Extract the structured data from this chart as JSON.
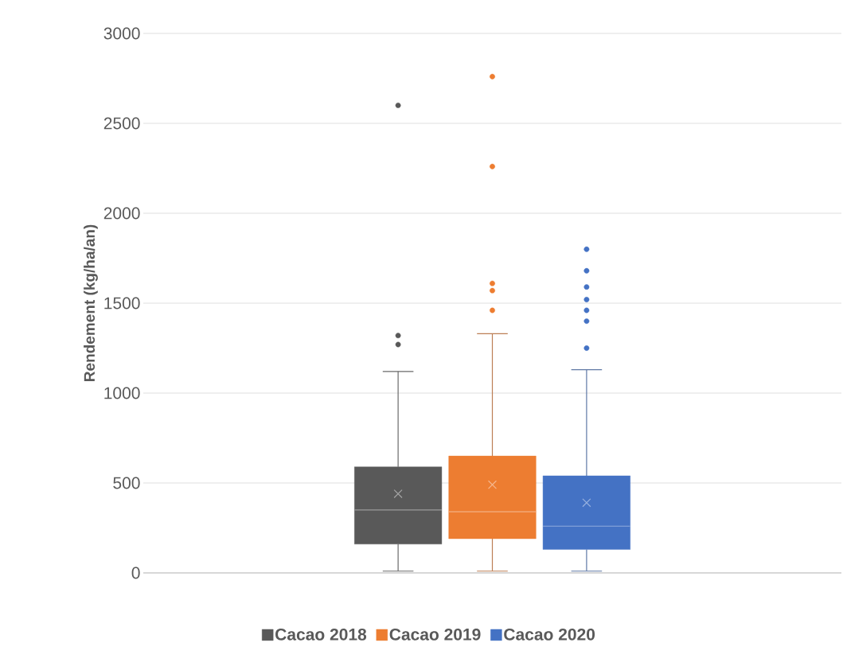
{
  "chart_data": {
    "type": "box",
    "ylabel": "Rendement (kg/ha/an)",
    "categories": [
      null
    ],
    "ylim": [
      0,
      3000
    ],
    "yticks": [
      0,
      500,
      1000,
      1500,
      2000,
      2500,
      3000
    ],
    "grid": "y",
    "legend": "bottom",
    "tick_labels": "y",
    "series": [
      {
        "name": "Cacao 2018",
        "color": "#595959",
        "boxes": [
          {
            "low": 10,
            "q1": 160,
            "median": 350,
            "q3": 590,
            "high": 1120,
            "mean": 440,
            "outliers": [
              1270,
              1320,
              2600
            ]
          }
        ]
      },
      {
        "name": "Cacao 2019",
        "color": "#ed7d31",
        "boxes": [
          {
            "low": 10,
            "q1": 190,
            "median": 340,
            "q3": 650,
            "high": 1330,
            "mean": 490,
            "outliers": [
              1460,
              1570,
              1610,
              2260,
              2760
            ]
          }
        ]
      },
      {
        "name": "Cacao 2020",
        "color": "#4472c4",
        "boxes": [
          {
            "low": 10,
            "q1": 130,
            "median": 260,
            "q3": 540,
            "high": 1130,
            "mean": 390,
            "outliers": [
              1250,
              1400,
              1460,
              1520,
              1590,
              1680,
              1800
            ]
          }
        ]
      }
    ]
  }
}
